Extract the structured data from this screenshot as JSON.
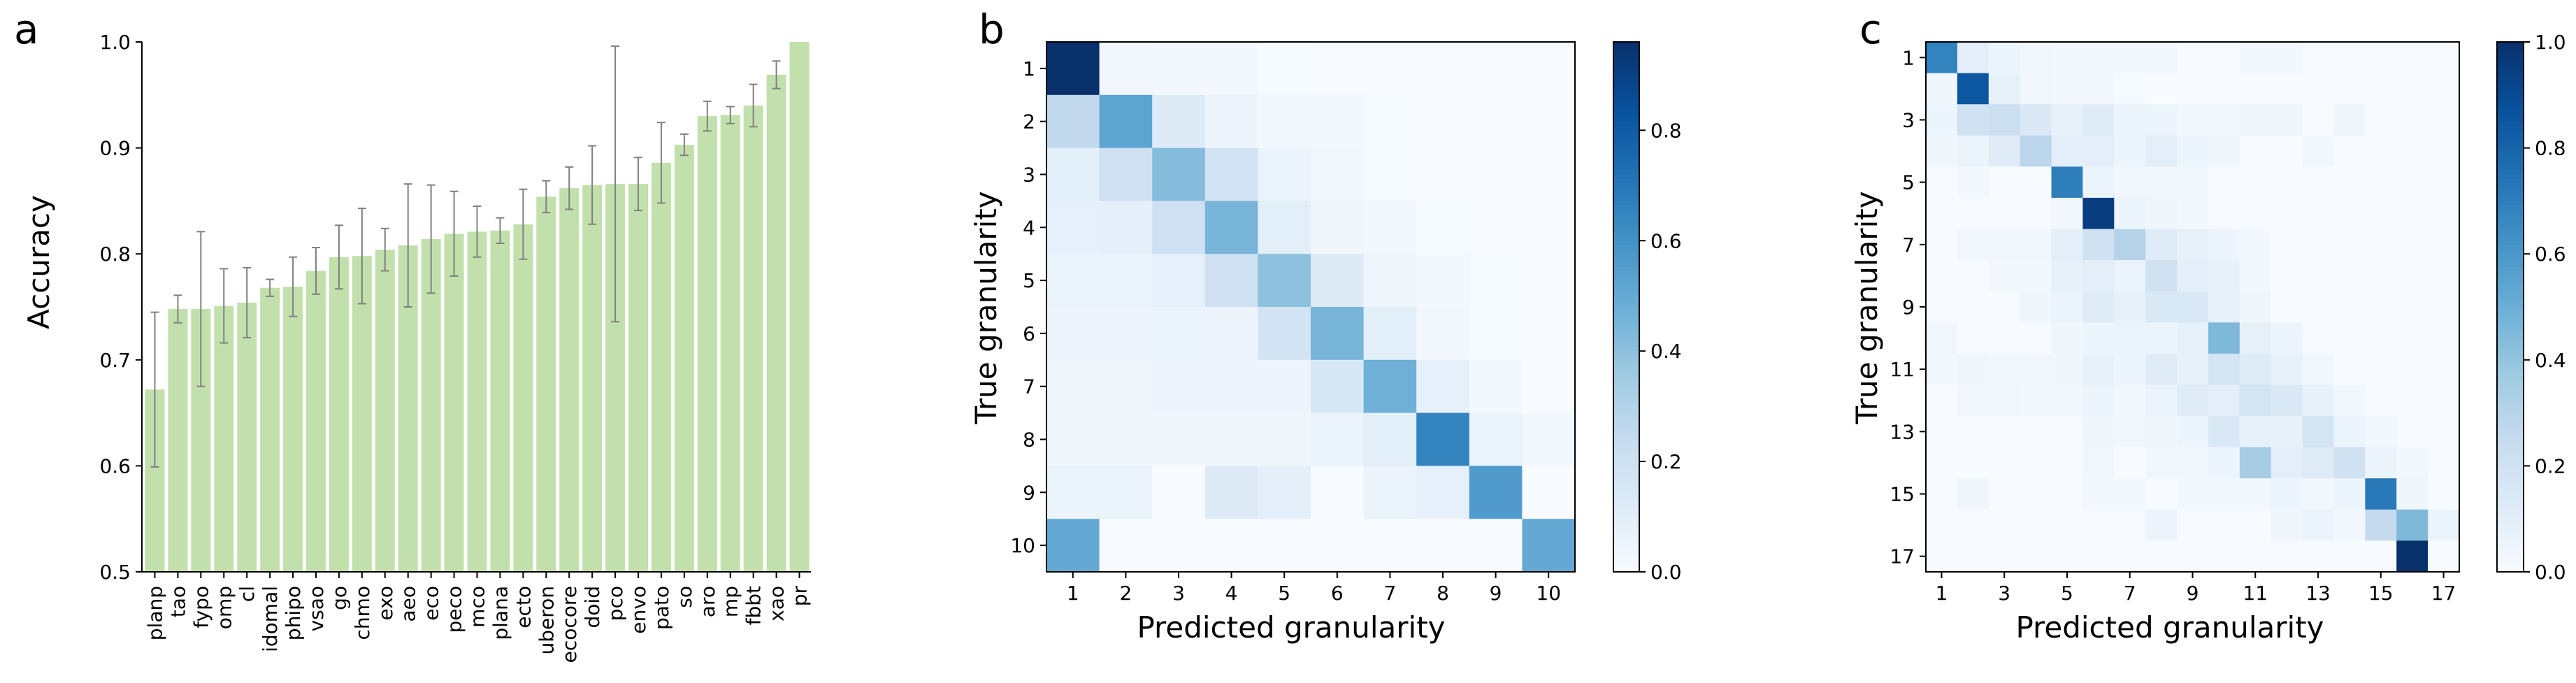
{
  "colors": {
    "bar": "#c2e0ac",
    "errorbar": "#808080",
    "cmap": [
      "#f7fbff",
      "#deebf7",
      "#c6dbef",
      "#9ecae1",
      "#6baed6",
      "#4292c6",
      "#2171b5",
      "#08519c",
      "#08306b"
    ]
  },
  "chart_data": [
    {
      "panel": "a",
      "type": "bar",
      "ylabel": "Accuracy",
      "xlabel": "",
      "ylim": [
        0.5,
        1.0
      ],
      "yticks": [
        "0.5",
        "0.6",
        "0.7",
        "0.8",
        "0.9",
        "1.0"
      ],
      "categories": [
        "planp",
        "tao",
        "fypo",
        "omp",
        "cl",
        "idomal",
        "phipo",
        "vsao",
        "go",
        "chmo",
        "exo",
        "aeo",
        "eco",
        "peco",
        "mco",
        "plana",
        "ecto",
        "uberon",
        "ecocore",
        "doid",
        "pco",
        "envo",
        "pato",
        "so",
        "aro",
        "mp",
        "fbbt",
        "xao",
        "pr"
      ],
      "values": [
        0.672,
        0.748,
        0.748,
        0.751,
        0.754,
        0.768,
        0.769,
        0.784,
        0.797,
        0.798,
        0.804,
        0.808,
        0.814,
        0.819,
        0.821,
        0.822,
        0.828,
        0.854,
        0.862,
        0.865,
        0.866,
        0.866,
        0.886,
        0.903,
        0.93,
        0.931,
        0.94,
        0.969,
        1.0
      ],
      "errors": [
        0.073,
        0.013,
        0.073,
        0.035,
        0.033,
        0.008,
        0.028,
        0.022,
        0.03,
        0.045,
        0.02,
        0.058,
        0.051,
        0.04,
        0.024,
        0.012,
        0.033,
        0.015,
        0.02,
        0.037,
        0.13,
        0.025,
        0.038,
        0.01,
        0.014,
        0.008,
        0.02,
        0.013,
        0.0
      ]
    },
    {
      "panel": "b",
      "type": "heatmap",
      "xlabel": "Predicted granularity",
      "ylabel": "True granularity",
      "x_ticks": [
        "1",
        "2",
        "3",
        "4",
        "5",
        "6",
        "7",
        "8",
        "9",
        "10"
      ],
      "y_ticks": [
        "1",
        "2",
        "3",
        "4",
        "5",
        "6",
        "7",
        "8",
        "9",
        "10"
      ],
      "colorbar_ticks": [
        "0.0",
        "0.2",
        "0.4",
        "0.6",
        "0.8"
      ],
      "vmax": 0.96,
      "matrix": [
        [
          0.96,
          0.03,
          0.02,
          0.02,
          0.01,
          0.0,
          0.0,
          0.0,
          0.0,
          0.0
        ],
        [
          0.25,
          0.52,
          0.12,
          0.05,
          0.03,
          0.02,
          0.01,
          0.0,
          0.0,
          0.0
        ],
        [
          0.1,
          0.2,
          0.42,
          0.18,
          0.06,
          0.03,
          0.01,
          0.0,
          0.0,
          0.0
        ],
        [
          0.08,
          0.09,
          0.2,
          0.45,
          0.1,
          0.04,
          0.02,
          0.01,
          0.0,
          0.0
        ],
        [
          0.06,
          0.06,
          0.08,
          0.2,
          0.4,
          0.12,
          0.04,
          0.02,
          0.01,
          0.0
        ],
        [
          0.05,
          0.05,
          0.06,
          0.05,
          0.18,
          0.45,
          0.1,
          0.03,
          0.01,
          0.0
        ],
        [
          0.04,
          0.04,
          0.05,
          0.05,
          0.05,
          0.15,
          0.47,
          0.08,
          0.02,
          0.0
        ],
        [
          0.04,
          0.04,
          0.04,
          0.04,
          0.04,
          0.06,
          0.1,
          0.65,
          0.06,
          0.02
        ],
        [
          0.06,
          0.06,
          0.0,
          0.12,
          0.09,
          0.0,
          0.06,
          0.08,
          0.56,
          0.0
        ],
        [
          0.5,
          0.0,
          0.0,
          0.0,
          0.0,
          0.0,
          0.0,
          0.0,
          0.0,
          0.5
        ]
      ]
    },
    {
      "panel": "c",
      "type": "heatmap",
      "xlabel": "Predicted granularity",
      "ylabel": "True granularity",
      "x_ticks": [
        "1",
        "3",
        "5",
        "7",
        "9",
        "11",
        "13",
        "15",
        "17"
      ],
      "y_ticks": [
        "1",
        "3",
        "5",
        "7",
        "9",
        "11",
        "13",
        "15",
        "17"
      ],
      "colorbar_ticks": [
        "0.0",
        "0.2",
        "0.4",
        "0.6",
        "0.8",
        "1.0"
      ],
      "vmax": 1.0,
      "matrix": [
        [
          0.68,
          0.1,
          0.05,
          0.03,
          0.02,
          0.02,
          0.02,
          0.02,
          0.0,
          0.0,
          0.02,
          0.02,
          0.0,
          0.0,
          0.0,
          0.0,
          0.0
        ],
        [
          0.04,
          0.85,
          0.08,
          0.03,
          0.02,
          0.02,
          0.01,
          0.0,
          0.0,
          0.0,
          0.0,
          0.0,
          0.0,
          0.0,
          0.0,
          0.0,
          0.0
        ],
        [
          0.05,
          0.2,
          0.22,
          0.14,
          0.08,
          0.12,
          0.06,
          0.05,
          0.03,
          0.02,
          0.04,
          0.04,
          0.0,
          0.04,
          0.0,
          0.0,
          0.0
        ],
        [
          0.04,
          0.06,
          0.12,
          0.28,
          0.1,
          0.1,
          0.05,
          0.1,
          0.05,
          0.04,
          0.0,
          0.0,
          0.03,
          0.0,
          0.0,
          0.0,
          0.0
        ],
        [
          0.0,
          0.02,
          0.0,
          0.0,
          0.7,
          0.06,
          0.03,
          0.03,
          0.02,
          0.0,
          0.0,
          0.0,
          0.0,
          0.0,
          0.0,
          0.0,
          0.0
        ],
        [
          0.0,
          0.0,
          0.0,
          0.0,
          0.03,
          0.95,
          0.05,
          0.04,
          0.02,
          0.0,
          0.0,
          0.0,
          0.0,
          0.0,
          0.0,
          0.0,
          0.0
        ],
        [
          0.0,
          0.03,
          0.03,
          0.03,
          0.1,
          0.2,
          0.3,
          0.12,
          0.08,
          0.05,
          0.02,
          0.0,
          0.0,
          0.0,
          0.0,
          0.0,
          0.0
        ],
        [
          0.0,
          0.0,
          0.02,
          0.02,
          0.08,
          0.1,
          0.06,
          0.2,
          0.1,
          0.08,
          0.02,
          0.0,
          0.0,
          0.0,
          0.0,
          0.0,
          0.0
        ],
        [
          0.0,
          0.0,
          0.0,
          0.04,
          0.06,
          0.12,
          0.08,
          0.15,
          0.15,
          0.08,
          0.04,
          0.0,
          0.0,
          0.0,
          0.0,
          0.0,
          0.0
        ],
        [
          0.03,
          0.0,
          0.0,
          0.0,
          0.04,
          0.05,
          0.06,
          0.06,
          0.08,
          0.45,
          0.08,
          0.05,
          0.0,
          0.0,
          0.0,
          0.0,
          0.0
        ],
        [
          0.02,
          0.04,
          0.03,
          0.03,
          0.04,
          0.08,
          0.05,
          0.12,
          0.08,
          0.18,
          0.12,
          0.08,
          0.03,
          0.0,
          0.0,
          0.0,
          0.0
        ],
        [
          0.0,
          0.03,
          0.03,
          0.02,
          0.02,
          0.06,
          0.03,
          0.06,
          0.12,
          0.1,
          0.18,
          0.15,
          0.08,
          0.03,
          0.0,
          0.0,
          0.0
        ],
        [
          0.0,
          0.0,
          0.0,
          0.0,
          0.0,
          0.04,
          0.03,
          0.04,
          0.05,
          0.15,
          0.08,
          0.08,
          0.18,
          0.06,
          0.02,
          0.0,
          0.0
        ],
        [
          0.0,
          0.0,
          0.0,
          0.0,
          0.0,
          0.03,
          0.0,
          0.03,
          0.03,
          0.05,
          0.35,
          0.1,
          0.12,
          0.2,
          0.05,
          0.02,
          0.0
        ],
        [
          0.0,
          0.04,
          0.0,
          0.0,
          0.0,
          0.02,
          0.02,
          0.0,
          0.02,
          0.02,
          0.02,
          0.05,
          0.03,
          0.05,
          0.72,
          0.04,
          0.0
        ],
        [
          0.0,
          0.0,
          0.0,
          0.0,
          0.0,
          0.0,
          0.0,
          0.06,
          0.0,
          0.0,
          0.0,
          0.04,
          0.06,
          0.03,
          0.25,
          0.45,
          0.06
        ],
        [
          0.0,
          0.0,
          0.0,
          0.0,
          0.0,
          0.0,
          0.0,
          0.0,
          0.0,
          0.0,
          0.0,
          0.0,
          0.0,
          0.0,
          0.0,
          1.0,
          0.0
        ]
      ]
    }
  ],
  "panels": {
    "a": "a",
    "b": "b",
    "c": "c"
  }
}
